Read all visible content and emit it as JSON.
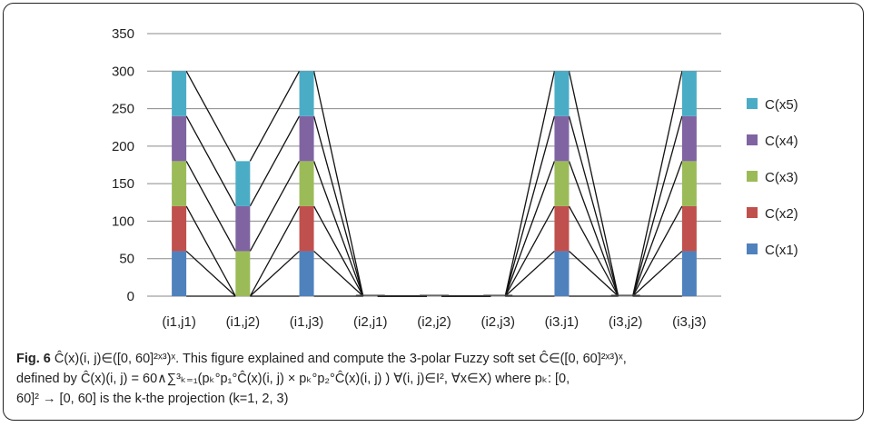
{
  "chart_data": {
    "type": "bar",
    "stacked": true,
    "categories": [
      "(i1,j1)",
      "(i1,j2)",
      "(i1,j3)",
      "(i2,j1)",
      "(i2,j2)",
      "(i2,j3)",
      "(i3.j1)",
      "(i3,j2)",
      "(i3,j3)"
    ],
    "series": [
      {
        "name": "C(x1)",
        "color": "#4F81BD",
        "values": [
          60,
          0,
          60,
          0,
          0,
          0,
          60,
          0,
          60
        ]
      },
      {
        "name": "C(x2)",
        "color": "#C0504D",
        "values": [
          60,
          0,
          60,
          0,
          0,
          0,
          60,
          0,
          60
        ]
      },
      {
        "name": "C(x3)",
        "color": "#9BBB59",
        "values": [
          60,
          60,
          60,
          0,
          0,
          0,
          60,
          0,
          60
        ]
      },
      {
        "name": "C(x4)",
        "color": "#8064A2",
        "values": [
          60,
          60,
          60,
          0,
          0,
          0,
          60,
          0,
          60
        ]
      },
      {
        "name": "C(x5)",
        "color": "#4BACC6",
        "values": [
          60,
          60,
          60,
          0,
          0,
          0,
          60,
          0,
          60
        ]
      }
    ],
    "ylim": [
      0,
      350
    ],
    "yticks": [
      "0",
      "50",
      "100",
      "150",
      "200",
      "250",
      "300",
      "350"
    ],
    "grid": true,
    "legend": "right",
    "series_lines": true
  },
  "caption": {
    "fig_label": "Fig. 6",
    "line1": "Ĉ(x)(i, j)∈([0, 60]²ˣ³)ˣ. This figure explained and compute the 3-polar Fuzzy soft set Ĉ∈([0, 60]²ˣ³)ˣ,",
    "line2": "defined by Ĉ(x)(i, j) = 60∧∑³ₖ₌₁(pₖ°p₁°Ĉ(x)(i, j) × pₖ°p₂°Ĉ(x)(i, j) )   ∀(i, j)∈I², ∀x∈X)  where pₖ: [0,",
    "line3": "60]² → [0, 60] is the k-the projection (k=1, 2, 3)"
  }
}
